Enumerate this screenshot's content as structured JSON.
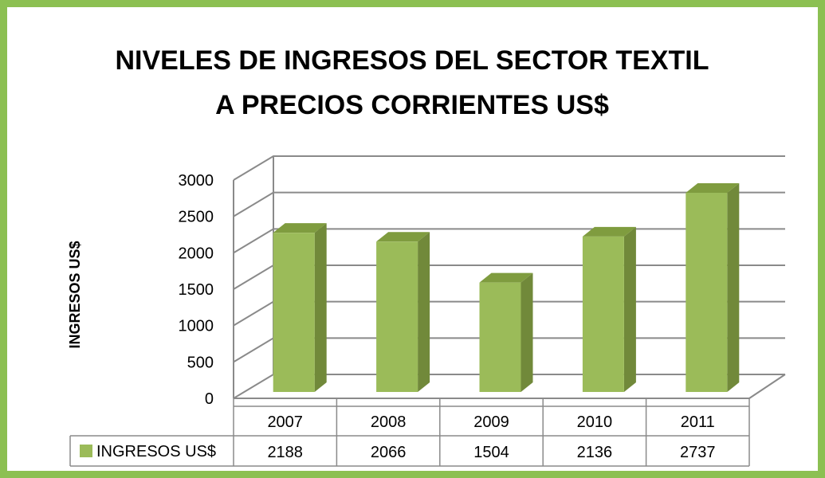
{
  "chart_data": {
    "type": "bar",
    "title": "NIVELES DE INGRESOS DEL SECTOR TEXTIL A PRECIOS CORRIENTES US$",
    "y_axis_label": "INGRESOS US$",
    "categories": [
      "2007",
      "2008",
      "2009",
      "2010",
      "2011"
    ],
    "series": [
      {
        "name": "INGRESOS US$",
        "color": "#9bbb59",
        "values": [
          2188,
          2066,
          1504,
          2136,
          2737
        ]
      }
    ],
    "ylim": [
      0,
      3000
    ],
    "yticks": [
      0,
      500,
      1000,
      1500,
      2000,
      2500,
      3000
    ],
    "grid": true,
    "data_table": true
  }
}
